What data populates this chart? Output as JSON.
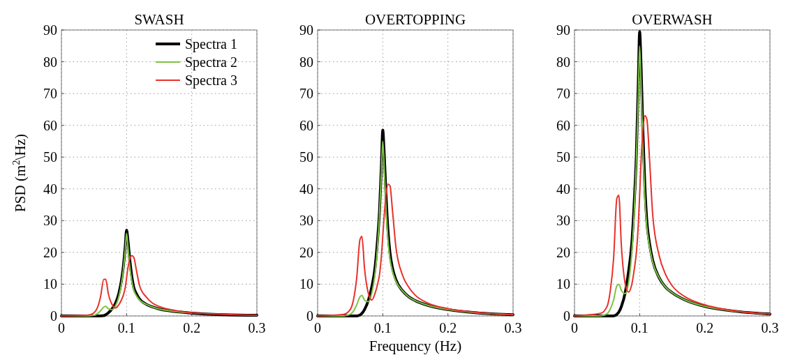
{
  "chart_data": [
    {
      "type": "line",
      "title": "SWASH",
      "ylabel": "PSD (m$^{2}$\\Hz)",
      "xlim": [
        0,
        0.3
      ],
      "ylim": [
        0,
        90
      ],
      "xticks": [
        0,
        0.1,
        0.2,
        0.3
      ],
      "yticks": [
        0,
        10,
        20,
        30,
        40,
        50,
        60,
        70,
        80,
        90
      ],
      "grid": true,
      "legend": "top right",
      "line_style": "solid",
      "x": [
        0,
        0.04,
        0.05,
        0.055,
        0.06,
        0.065,
        0.068,
        0.072,
        0.078,
        0.083,
        0.088,
        0.092,
        0.095,
        0.098,
        0.1,
        0.102,
        0.105,
        0.108,
        0.111,
        0.115,
        0.12,
        0.13,
        0.14,
        0.15,
        0.17,
        0.2,
        0.25,
        0.3
      ],
      "series": [
        {
          "name": "Spectra 1",
          "color": "#000000",
          "values": [
            0,
            0,
            0,
            0,
            0,
            0.1,
            0.4,
            1,
            2.3,
            4,
            7,
            11,
            15.5,
            22,
            27,
            24,
            17.5,
            12.5,
            9,
            7,
            5.3,
            3.7,
            2.8,
            2.2,
            1.5,
            0.9,
            0.4,
            0.2
          ]
        },
        {
          "name": "Spectra 2",
          "color": "#7dc242",
          "values": [
            0,
            0,
            0.2,
            0.7,
            1.6,
            2.8,
            3,
            2.3,
            2,
            3.2,
            6,
            10,
            14.5,
            21,
            26,
            22,
            15.5,
            11,
            8.2,
            6.4,
            5,
            3.7,
            2.8,
            2.2,
            1.5,
            0.9,
            null,
            null
          ]
        },
        {
          "name": "Spectra 3",
          "color": "#e8312a",
          "values": [
            0,
            0.2,
            1,
            2.5,
            6,
            11.5,
            11.5,
            7,
            3.5,
            2.5,
            3.5,
            5,
            6.5,
            9,
            12,
            15,
            18,
            19,
            18.5,
            14.5,
            9.5,
            6,
            4,
            3,
            1.9,
            1,
            0.5,
            0.2
          ]
        }
      ]
    },
    {
      "type": "line",
      "title": "OVERTOPPING",
      "xlabel": "Frequency (Hz)",
      "xlim": [
        0,
        0.3
      ],
      "ylim": [
        0,
        90
      ],
      "xticks": [
        0,
        0.1,
        0.2,
        0.3
      ],
      "yticks": [
        0,
        10,
        20,
        30,
        40,
        50,
        60,
        70,
        80,
        90
      ],
      "grid": true,
      "legend": false,
      "line_style": "solid",
      "x": [
        0,
        0.04,
        0.05,
        0.055,
        0.06,
        0.065,
        0.068,
        0.072,
        0.078,
        0.083,
        0.088,
        0.092,
        0.095,
        0.098,
        0.1,
        0.102,
        0.105,
        0.108,
        0.111,
        0.115,
        0.12,
        0.13,
        0.14,
        0.15,
        0.17,
        0.2,
        0.25,
        0.3
      ],
      "series": [
        {
          "color": "#000000",
          "values": [
            0,
            0,
            0,
            0,
            0,
            0.3,
            0.8,
            2,
            5,
            9,
            15,
            24,
            33,
            48,
            58.5,
            52,
            38,
            27,
            20,
            15,
            11.5,
            8,
            6,
            4.8,
            3.3,
            2,
            0.9,
            0.4
          ]
        },
        {
          "color": "#7dc242",
          "values": [
            0,
            0,
            0.5,
            1.5,
            3.5,
            6,
            6.5,
            5,
            4.5,
            7,
            13,
            22,
            32,
            46,
            55,
            48,
            34,
            24,
            18,
            14,
            11,
            8,
            6,
            4.8,
            3.3,
            2,
            0.9,
            0.4
          ]
        },
        {
          "color": "#e8312a",
          "values": [
            0,
            0.5,
            2,
            5,
            12,
            24,
            25,
            15,
            7,
            5,
            7,
            10,
            13,
            19,
            25,
            31,
            38,
            41.5,
            41,
            33,
            22,
            13,
            9,
            6.5,
            4,
            2.3,
            1,
            0.4
          ]
        }
      ]
    },
    {
      "type": "line",
      "title": "OVERWASH",
      "xlim": [
        0,
        0.3
      ],
      "ylim": [
        0,
        90
      ],
      "xticks": [
        0,
        0.1,
        0.2,
        0.3
      ],
      "yticks": [
        0,
        10,
        20,
        30,
        40,
        50,
        60,
        70,
        80,
        90
      ],
      "grid": true,
      "legend": false,
      "line_style": "solid",
      "x": [
        0,
        0.04,
        0.05,
        0.055,
        0.06,
        0.065,
        0.068,
        0.072,
        0.078,
        0.083,
        0.088,
        0.092,
        0.095,
        0.098,
        0.1,
        0.102,
        0.105,
        0.108,
        0.111,
        0.115,
        0.12,
        0.13,
        0.14,
        0.15,
        0.17,
        0.2,
        0.25,
        0.3
      ],
      "series": [
        {
          "color": "#000000",
          "values": [
            0,
            0,
            0,
            0,
            0,
            0.5,
            1.2,
            3,
            7.5,
            14,
            23,
            37,
            51,
            74,
            89.5,
            80,
            58,
            41,
            30,
            23,
            17.5,
            12,
            9,
            7.3,
            5,
            3,
            1.4,
            0.6
          ]
        },
        {
          "color": "#7dc242",
          "values": [
            0,
            0,
            0.7,
            2.2,
            5,
            9.5,
            10,
            8,
            7,
            10.5,
            20,
            34,
            49,
            70,
            85,
            74,
            53,
            37,
            28,
            22,
            17,
            12,
            9,
            7.3,
            5,
            3,
            1.4,
            0.6
          ]
        },
        {
          "color": "#e8312a",
          "values": [
            0,
            0.8,
            3,
            8,
            18,
            37,
            38,
            22,
            10,
            7.5,
            10,
            15,
            20,
            29,
            38,
            48,
            58,
            63,
            62,
            50,
            32,
            19,
            13,
            9.5,
            6,
            3.5,
            1.5,
            0.6
          ]
        }
      ]
    }
  ]
}
